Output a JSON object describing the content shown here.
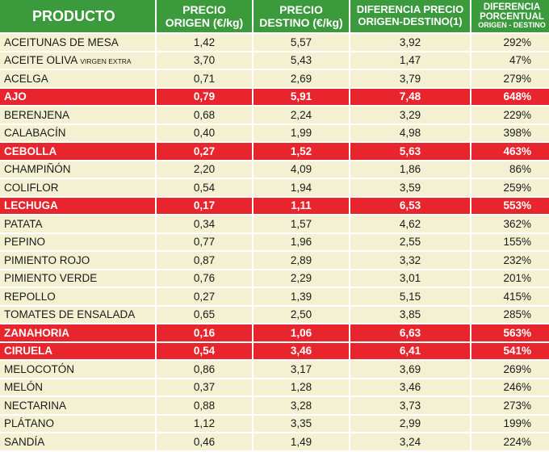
{
  "header": {
    "producto": "PRODUCTO",
    "origen": [
      "PRECIO",
      "ORIGEN (€/kg)"
    ],
    "destino": [
      "PRECIO",
      "DESTINO (€/kg)"
    ],
    "diferencia": [
      "DIFERENCIA PRECIO",
      "ORIGEN-DESTINO(1)"
    ],
    "porcentual": [
      "DIFERENCIA",
      "PORCENTUAL",
      "ORIGEN - DESTINO"
    ]
  },
  "colors": {
    "header_bg": "#3a9a3c",
    "row_bg": "#f4f1d2",
    "highlight_bg": "#e8242c"
  },
  "rows": [
    {
      "name": "ACEITUNAS DE MESA",
      "origen": "1,42",
      "destino": "5,57",
      "diff": "3,92",
      "pct": "292%",
      "highlight": false
    },
    {
      "name": "ACEITE OLIVA",
      "name_small": "VIRGEN EXTRA",
      "origen": "3,70",
      "destino": "5,43",
      "diff": "1,47",
      "pct": "47%",
      "highlight": false
    },
    {
      "name": "ACELGA",
      "origen": "0,71",
      "destino": "2,69",
      "diff": "3,79",
      "pct": "279%",
      "highlight": false
    },
    {
      "name": "AJO",
      "origen": "0,79",
      "destino": "5,91",
      "diff": "7,48",
      "pct": "648%",
      "highlight": true
    },
    {
      "name": "BERENJENA",
      "origen": "0,68",
      "destino": "2,24",
      "diff": "3,29",
      "pct": "229%",
      "highlight": false
    },
    {
      "name": "CALABACÍN",
      "origen": "0,40",
      "destino": "1,99",
      "diff": "4,98",
      "pct": "398%",
      "highlight": false
    },
    {
      "name": "CEBOLLA",
      "origen": "0,27",
      "destino": "1,52",
      "diff": "5,63",
      "pct": "463%",
      "highlight": true
    },
    {
      "name": "CHAMPIÑÓN",
      "origen": "2,20",
      "destino": "4,09",
      "diff": "1,86",
      "pct": "86%",
      "highlight": false
    },
    {
      "name": "COLIFLOR",
      "origen": "0,54",
      "destino": "1,94",
      "diff": "3,59",
      "pct": "259%",
      "highlight": false
    },
    {
      "name": "LECHUGA",
      "origen": "0,17",
      "destino": "1,11",
      "diff": "6,53",
      "pct": "553%",
      "highlight": true
    },
    {
      "name": "PATATA",
      "origen": "0,34",
      "destino": "1,57",
      "diff": "4,62",
      "pct": "362%",
      "highlight": false
    },
    {
      "name": "PEPINO",
      "origen": "0,77",
      "destino": "1,96",
      "diff": "2,55",
      "pct": "155%",
      "highlight": false
    },
    {
      "name": "PIMIENTO ROJO",
      "origen": "0,87",
      "destino": "2,89",
      "diff": "3,32",
      "pct": "232%",
      "highlight": false
    },
    {
      "name": "PIMIENTO VERDE",
      "origen": "0,76",
      "destino": "2,29",
      "diff": "3,01",
      "pct": "201%",
      "highlight": false
    },
    {
      "name": "REPOLLO",
      "origen": "0,27",
      "destino": "1,39",
      "diff": "5,15",
      "pct": "415%",
      "highlight": false
    },
    {
      "name": "TOMATES DE ENSALADA",
      "origen": "0,65",
      "destino": "2,50",
      "diff": "3,85",
      "pct": "285%",
      "highlight": false
    },
    {
      "name": "ZANAHORIA",
      "origen": "0,16",
      "destino": "1,06",
      "diff": "6,63",
      "pct": "563%",
      "highlight": true
    },
    {
      "name": "CIRUELA",
      "origen": "0,54",
      "destino": "3,46",
      "diff": "6,41",
      "pct": "541%",
      "highlight": true
    },
    {
      "name": "MELOCOTÓN",
      "origen": "0,86",
      "destino": "3,17",
      "diff": "3,69",
      "pct": "269%",
      "highlight": false
    },
    {
      "name": "MELÓN",
      "origen": "0,37",
      "destino": "1,28",
      "diff": "3,46",
      "pct": "246%",
      "highlight": false
    },
    {
      "name": "NECTARINA",
      "origen": "0,88",
      "destino": "3,28",
      "diff": "3,73",
      "pct": "273%",
      "highlight": false
    },
    {
      "name": "PLÁTANO",
      "origen": "1,12",
      "destino": "3,35",
      "diff": "2,99",
      "pct": "199%",
      "highlight": false
    },
    {
      "name": "SANDÍA",
      "origen": "0,46",
      "destino": "1,49",
      "diff": "3,24",
      "pct": "224%",
      "highlight": false
    }
  ]
}
